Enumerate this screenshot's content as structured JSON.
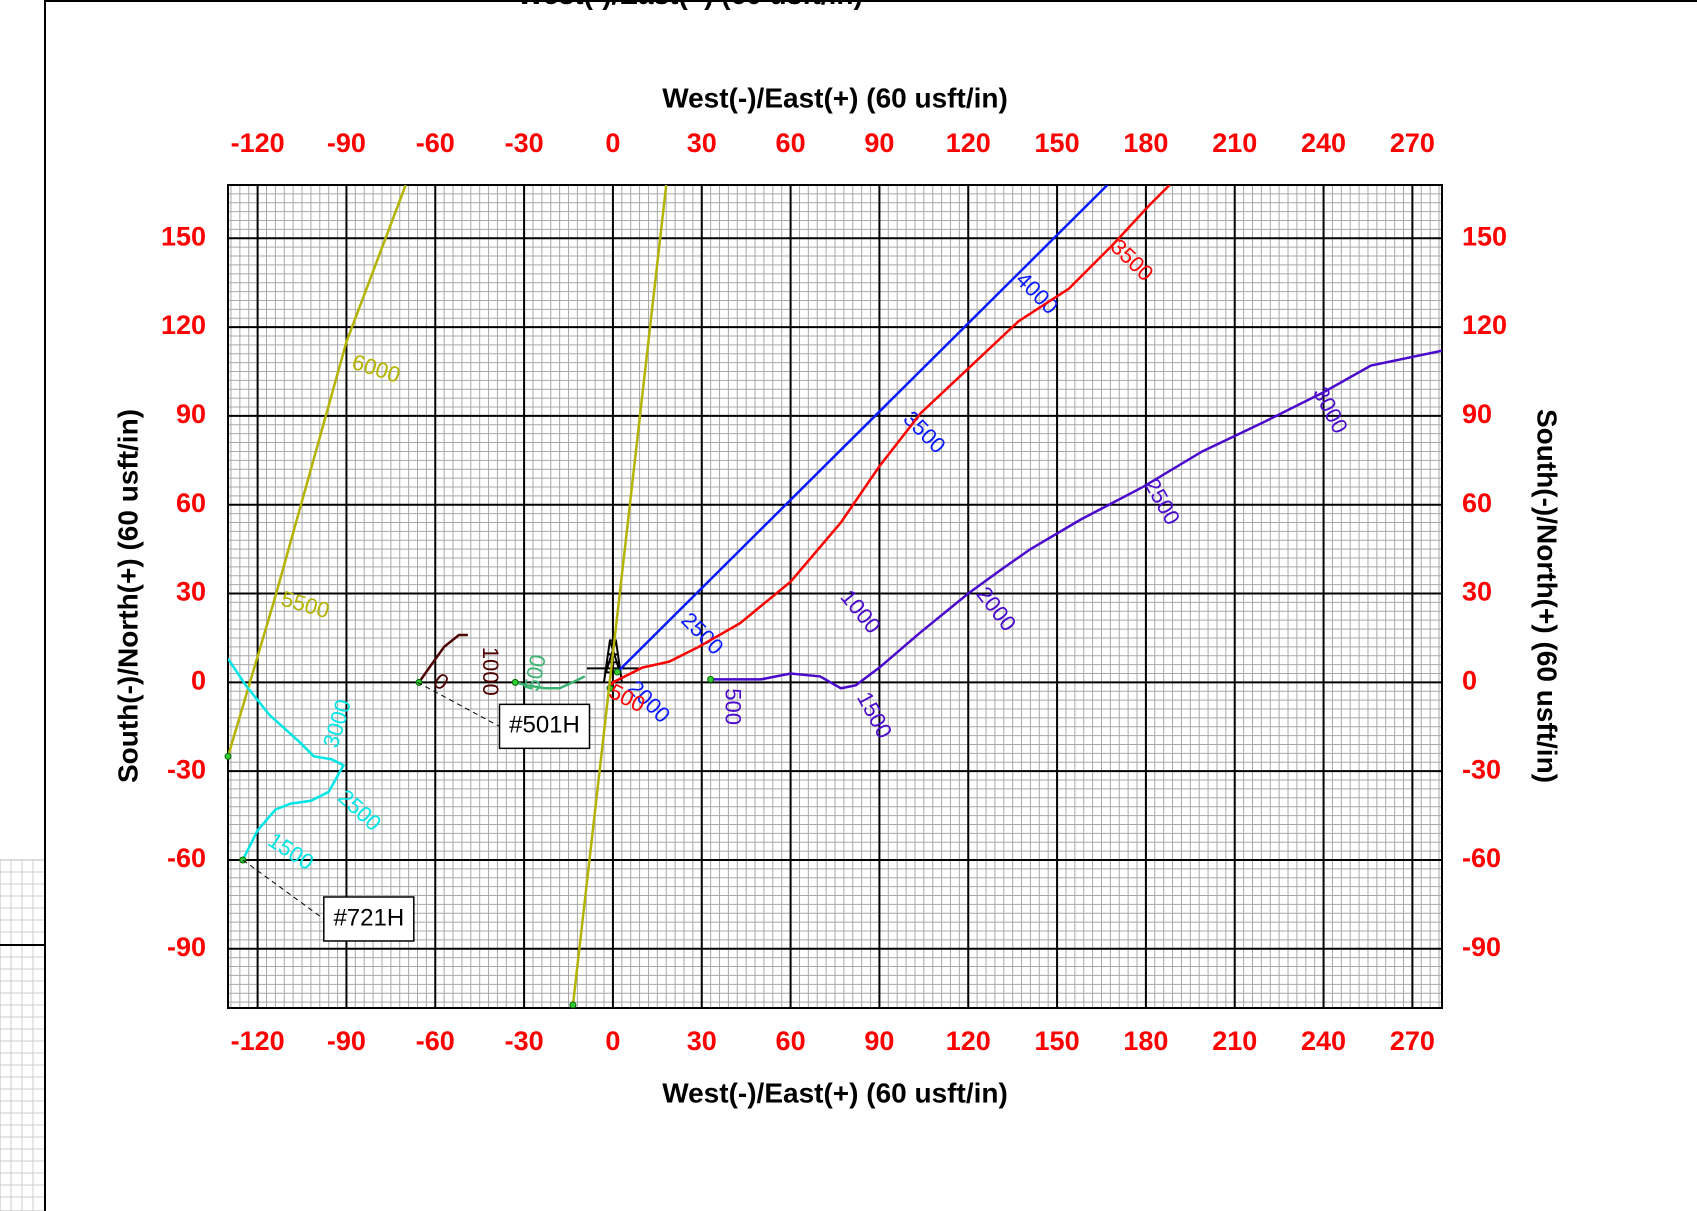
{
  "chart_data": {
    "type": "line",
    "title": "West(-)/East(+) (60 usft/in)",
    "x_label_top": "West(-)/East(+) (60 usft/in)",
    "x_label": "West(-)/East(+) (60 usft/in)",
    "y_label": "South(-)/North(+) (60 usft/in)",
    "y2_label": "South(-)/North(+) (60 usft/in)",
    "xlim": [
      -130,
      280
    ],
    "ylim": [
      -110,
      168
    ],
    "xticks": [
      -120,
      -90,
      -60,
      -30,
      0,
      30,
      60,
      90,
      120,
      150,
      180,
      210,
      240,
      270
    ],
    "yticks": [
      -90,
      -60,
      -30,
      0,
      30,
      60,
      90,
      120,
      150
    ],
    "tick_color": "#ff0000",
    "grid": true,
    "minor_grid_step": 3,
    "series": [
      {
        "color": "#0a1aff",
        "x": [
          1.5,
          167
        ],
        "values": [
          3.5,
          168
        ],
        "labels": [
          {
            "depth": 2000,
            "x": 6,
            "y": -1
          },
          {
            "depth": 2500,
            "x": 24,
            "y": 22
          },
          {
            "depth": 3500,
            "x": 99,
            "y": 90
          },
          {
            "depth": 4000,
            "x": 137,
            "y": 137
          }
        ]
      },
      {
        "color": "#ff0000",
        "x": [
          -1,
          0,
          10,
          19,
          29,
          43,
          60,
          77,
          90,
          104,
          120,
          137,
          154,
          169,
          181,
          188
        ],
        "values": [
          -2,
          0,
          5,
          7,
          12,
          20,
          34,
          54,
          73,
          91,
          106,
          122,
          133,
          148,
          161,
          168
        ],
        "labels": [
          {
            "depth": 500,
            "x": -1,
            "y": -3
          },
          {
            "depth": 3500,
            "x": 169,
            "y": 148
          }
        ]
      },
      {
        "color": "#b3b300",
        "x": [
          -13.5,
          18
        ],
        "values": [
          -109,
          168
        ],
        "labels": []
      },
      {
        "color": "#b3b300",
        "x": [
          -130,
          -114,
          -90,
          -70
        ],
        "values": [
          -25,
          29,
          115,
          168
        ],
        "labels": [
          {
            "depth": 5500,
            "x": -112,
            "y": 28
          },
          {
            "depth": 6000,
            "x": -88,
            "y": 108
          }
        ]
      },
      {
        "color": "#4d0000",
        "x": [
          -65.5,
          -62,
          -57,
          -52,
          -49
        ],
        "values": [
          0,
          5,
          12,
          16,
          16
        ],
        "labels": [
          {
            "depth": 0,
            "x": -60,
            "y": 1
          },
          {
            "depth": 1000,
            "x": -42,
            "y": 12
          }
        ]
      },
      {
        "color": "#3cb371",
        "x": [
          -33,
          -29,
          -23,
          -18,
          -13,
          -9.5
        ],
        "values": [
          0,
          -1,
          -2,
          -2,
          0.3,
          2
        ],
        "labels": [
          {
            "depth": 500,
            "x": -27,
            "y": -3
          }
        ]
      },
      {
        "color": "#4b0acc",
        "x": [
          33,
          50,
          60,
          70,
          77,
          82,
          90,
          104,
          120,
          131,
          141,
          158,
          179,
          199,
          220,
          240,
          256,
          280
        ],
        "values": [
          1,
          1,
          3,
          2,
          -2,
          -1,
          5,
          17,
          30,
          38,
          45,
          55,
          66,
          78,
          88,
          98,
          107,
          112
        ],
        "labels": [
          {
            "depth": 500,
            "x": 40,
            "y": -2
          },
          {
            "depth": 1000,
            "x": 78,
            "y": 30
          },
          {
            "depth": 1500,
            "x": 84,
            "y": -4
          },
          {
            "depth": 2000,
            "x": 124,
            "y": 31
          },
          {
            "depth": 2500,
            "x": 181,
            "y": 68
          },
          {
            "depth": 3000,
            "x": 238,
            "y": 99
          }
        ]
      },
      {
        "color": "#00e6e6",
        "x": [
          -125,
          -120,
          -114,
          -109,
          -102,
          -96,
          -91,
          -95,
          -101,
          -106,
          -116,
          -124,
          -130
        ],
        "values": [
          -60,
          -50,
          -43,
          -41,
          -40,
          -37,
          -28,
          -26,
          -25,
          -20,
          -11,
          -1,
          8
        ],
        "labels": [
          {
            "depth": 1500,
            "x": -116,
            "y": -53
          },
          {
            "depth": 2500,
            "x": -92,
            "y": -38
          },
          {
            "depth": 3000,
            "x": -95,
            "y": -22
          }
        ]
      }
    ],
    "wells": [
      {
        "name": "#501H",
        "x": -66,
        "y": 0
      },
      {
        "name": "#721H",
        "x": -125,
        "y": -60
      }
    ]
  }
}
